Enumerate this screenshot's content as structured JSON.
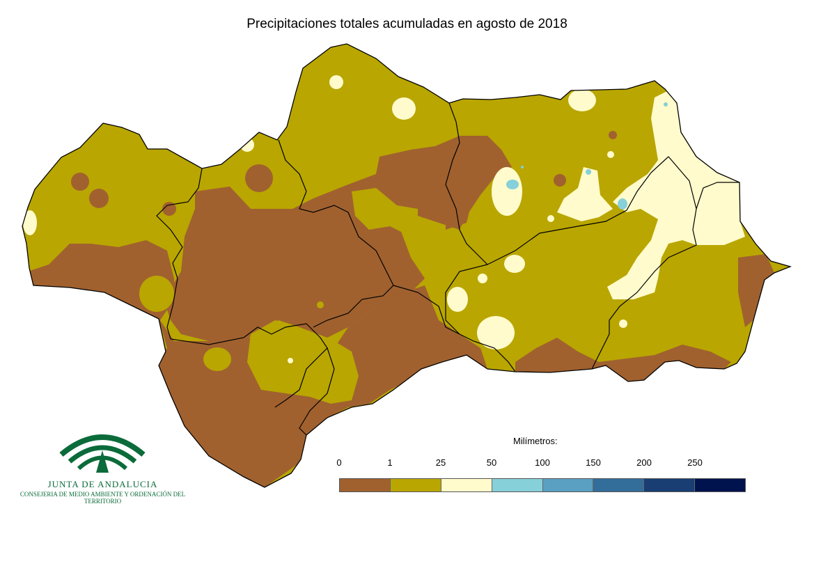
{
  "title": "Precipitaciones totales acumuladas en agosto de 2018",
  "legend": {
    "title": "Milímetros:",
    "ticks": [
      "0",
      "1",
      "25",
      "50",
      "100",
      "150",
      "200",
      "250"
    ],
    "colors": [
      "#a0612f",
      "#b9a600",
      "#fffbcc",
      "#86d0da",
      "#5aa0c3",
      "#336e9b",
      "#183e73",
      "#00134f"
    ]
  },
  "map": {
    "region": "Andalucía",
    "border_color": "#000000",
    "categories_present": [
      "0-1",
      "1-25",
      "25-50",
      "50-100"
    ]
  },
  "logo": {
    "name": "JUNTA DE ANDALUCIA",
    "department": "CONSEJERIA DE MEDIO AMBIENTE Y ORDENACIÓN DEL TERRITORIO",
    "color": "#0b6b3a"
  }
}
